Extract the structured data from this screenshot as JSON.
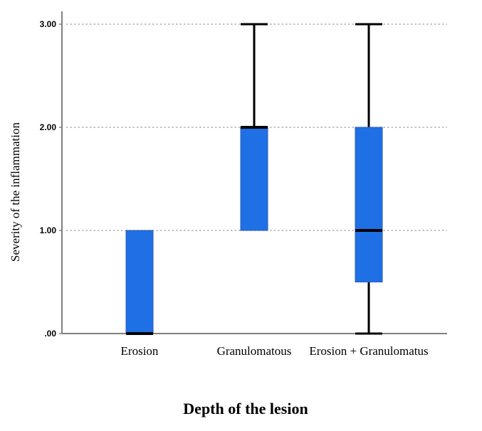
{
  "chart_data": {
    "type": "boxplot",
    "xlabel": "Depth of the lesion",
    "ylabel": "Severity of the inflammation",
    "ylim": [
      0,
      3
    ],
    "yticks": [
      {
        "value": 0,
        "label": ".00"
      },
      {
        "value": 1,
        "label": "1.00"
      },
      {
        "value": 2,
        "label": "2.00"
      },
      {
        "value": 3,
        "label": "3.00"
      }
    ],
    "grid": "horizontal-dotted",
    "categories": [
      "Erosion",
      "Granulomatous",
      "Erosion + Granulomatus"
    ],
    "boxes": [
      {
        "category": "Erosion",
        "min": 0,
        "q1": 0,
        "median": 0,
        "q3": 1,
        "max": 1
      },
      {
        "category": "Granulomatous",
        "min": 1,
        "q1": 1,
        "median": 2,
        "q3": 2,
        "max": 3
      },
      {
        "category": "Erosion + Granulomatus",
        "min": 0,
        "q1": 0.5,
        "median": 1,
        "q3": 2,
        "max": 3
      }
    ],
    "colors": {
      "box": "#1f6fe5",
      "line": "#000000",
      "grid": "#b0b0b0",
      "axis": "#808080"
    }
  }
}
